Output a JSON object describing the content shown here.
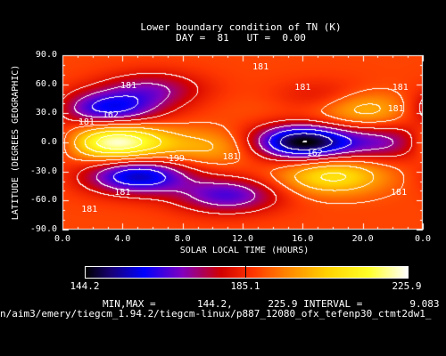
{
  "chart_data": {
    "type": "heatmap",
    "title": "Lower boundary condition of TN (K)",
    "subtitle": "DAY =  81   UT =  0.00",
    "xlabel": "SOLAR LOCAL TIME (HOURS)",
    "ylabel": "LATITUDE (DEGREES GEOGRAPHIC)",
    "x_ticks": [
      "0.0",
      "4.0",
      "8.0",
      "12.0",
      "16.0",
      "20.0",
      "0.0"
    ],
    "y_ticks": [
      "90.0",
      "60.0",
      "30.0",
      "0.0",
      "-30.0",
      "-60.0",
      "-90.0"
    ],
    "xlim": [
      0,
      24
    ],
    "ylim": [
      -90,
      90
    ],
    "min": 144.2,
    "max": 225.9,
    "interval": 9.083,
    "colorbar_labels": [
      "144.2",
      "185.1",
      "225.9"
    ],
    "contour_labels": [
      {
        "text": "181",
        "x": 13.2,
        "y": 77
      },
      {
        "text": "181",
        "x": 4.4,
        "y": 58
      },
      {
        "text": "181",
        "x": 16.0,
        "y": 56
      },
      {
        "text": "181",
        "x": 22.5,
        "y": 56
      },
      {
        "text": "162",
        "x": 3.2,
        "y": 28
      },
      {
        "text": "181",
        "x": 1.6,
        "y": 20
      },
      {
        "text": "181",
        "x": 22.2,
        "y": 34
      },
      {
        "text": "199",
        "x": 7.6,
        "y": -17
      },
      {
        "text": "181",
        "x": 11.2,
        "y": -16
      },
      {
        "text": "162",
        "x": 16.8,
        "y": -12
      },
      {
        "text": "181",
        "x": 4.0,
        "y": -52
      },
      {
        "text": "181",
        "x": 22.4,
        "y": -52
      },
      {
        "text": "181",
        "x": 1.8,
        "y": -70
      }
    ],
    "features": [
      {
        "x": 3.5,
        "y": 0,
        "value": 226
      },
      {
        "x": 10.0,
        "y": -5,
        "value": 200
      },
      {
        "x": 16.0,
        "y": 0,
        "value": 144
      },
      {
        "x": 22.0,
        "y": 0,
        "value": 170
      },
      {
        "x": 3.0,
        "y": 35,
        "value": 160
      },
      {
        "x": 5.0,
        "y": -35,
        "value": 155
      },
      {
        "x": 18.0,
        "y": -35,
        "value": 210
      },
      {
        "x": 20.0,
        "y": 35,
        "value": 205
      },
      {
        "x": 14.0,
        "y": 35,
        "value": 190
      },
      {
        "x": 11.0,
        "y": -55,
        "value": 165
      },
      {
        "x": 17.5,
        "y": 45,
        "value": 178
      },
      {
        "x": 6.0,
        "y": 55,
        "value": 172
      }
    ],
    "background_value": 188
  },
  "stats_line": "MIN,MAX =       144.2,      225.9 INTERVAL =        9.083",
  "footer": "n/aim3/emery/tiegcm_1.94.2/tiegcm-linux/p887_12080_ofx_tefenp30_ctmt2dw1_"
}
